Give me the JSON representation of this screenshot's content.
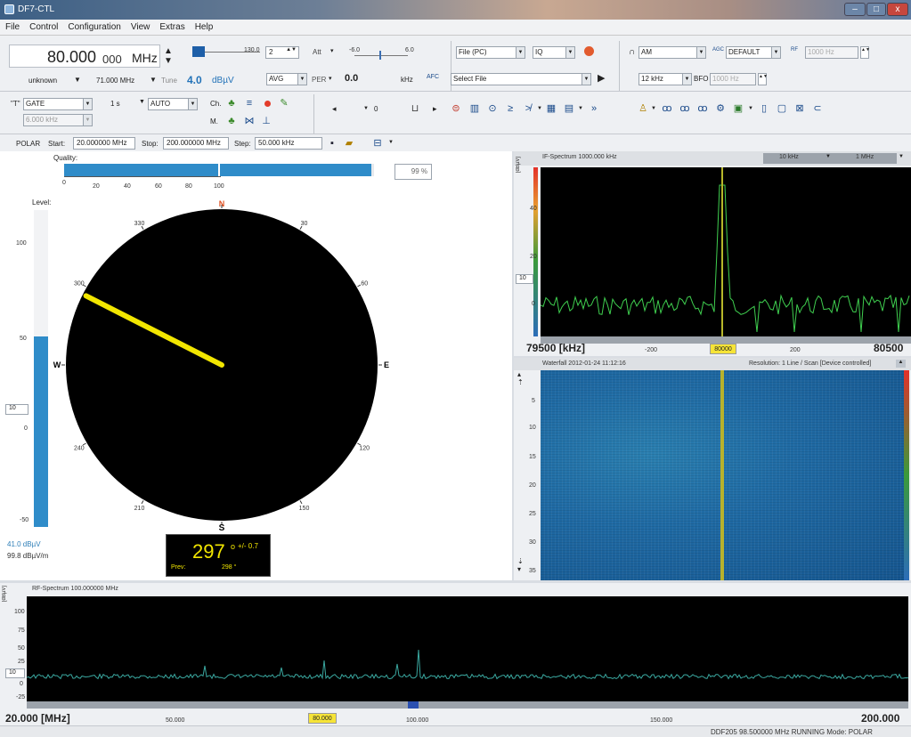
{
  "window": {
    "title": "DF7-CTL",
    "min": "–",
    "max": "□",
    "close": "x"
  },
  "menu": [
    "File",
    "Control",
    "Configuration",
    "View",
    "Extras",
    "Help"
  ],
  "tuning": {
    "frequency_main": "80.000",
    "frequency_sub": "000",
    "unit": "MHz",
    "mode_label": "unknown",
    "freq2": "71.000 MHz",
    "tune_label": "Tune",
    "tune_value": "4.0",
    "tune_unit": "dBµV",
    "slider_value": "130.0",
    "slider_spin": "2",
    "att_label": "Att",
    "range_min": "-6.0",
    "range_max": "6.0",
    "avg_label": "AVG",
    "per_label": "PER",
    "per_value": "0.0",
    "khz_label": "kHz",
    "afc_label": "AFC"
  },
  "source": {
    "file_label": "File (PC)",
    "iq_label": "IQ",
    "select_file": "Select File"
  },
  "demod": {
    "mode": "AM",
    "agc_label": "AGC",
    "agc_value": "DEFAULT",
    "bw": "12 kHz",
    "bfo_label": "BFO",
    "bfo_value": "1000 Hz",
    "rf_label": "RF",
    "rf_value": "1000 Hz"
  },
  "toolbar2": {
    "gate": "GATE",
    "gate_width": "6.000 kHz",
    "time": "1 s",
    "auto": "AUTO",
    "ch_label": "Ch.",
    "m_label": "M.",
    "spin_value": "0"
  },
  "polar_row": {
    "mode": "POLAR",
    "start_label": "Start:",
    "start_value": "20.000000 MHz",
    "stop_label": "Stop:",
    "stop_value": "200.000000 MHz",
    "step_label": "Step:",
    "step_value": "50.000 kHz"
  },
  "quality": {
    "label": "Quality:",
    "value_text": "99 %",
    "level": 0.99,
    "ticks": [
      "0",
      "20",
      "40",
      "60",
      "80",
      "100"
    ]
  },
  "level": {
    "label": "Level:",
    "ticks": [
      "100",
      "50",
      "0",
      "-50"
    ],
    "threshold": "10",
    "level_dbuv": "41.0 dBµV",
    "level_dbuvm": "99.8 dBµV/m",
    "fill": 0.6
  },
  "compass": {
    "north": "N",
    "south": "S",
    "east": "E",
    "west": "W",
    "labels": [
      "30",
      "60",
      "120",
      "150",
      "210",
      "240",
      "300",
      "330"
    ],
    "bearing_deg": 297,
    "bearing_text": "297",
    "deg_symbol": "o",
    "accuracy": "+/- 0.7",
    "prev_label": "Prev:",
    "prev_value": "298 °",
    "needle_color": "#f2e600"
  },
  "if_spectrum": {
    "title": "IF-Spectrum 1000.000 kHz",
    "unit_label": "[dBµV]",
    "span1": "10 kHz",
    "span2": "1 MHz",
    "yticks": [
      "40",
      "20",
      "0"
    ],
    "threshold": "10",
    "left": "79500 [kHz]",
    "tick_l": "-200",
    "center": "80000",
    "tick_r": "200",
    "right": "80500"
  },
  "waterfall": {
    "title": "Waterfall 2012-01-24 11:12:16",
    "resolution": "Resolution: 1 Line / Scan [Device controlled]",
    "yticks": [
      "5",
      "10",
      "15",
      "20",
      "25",
      "30",
      "35"
    ]
  },
  "rf_spectrum": {
    "title": "RF-Spectrum 100.000000 MHz",
    "unit_label": "[dBµV]",
    "yticks": [
      "100",
      "75",
      "50",
      "25",
      "0",
      "-25"
    ],
    "threshold": "10",
    "left": "20.000 [MHz]",
    "t1": "50.000",
    "center": "80.000",
    "t2": "100.000",
    "t3": "150.000",
    "right": "200.000"
  },
  "statusbar": {
    "text": "DDF205 98.500000 MHz RUNNING Mode: POLAR"
  }
}
